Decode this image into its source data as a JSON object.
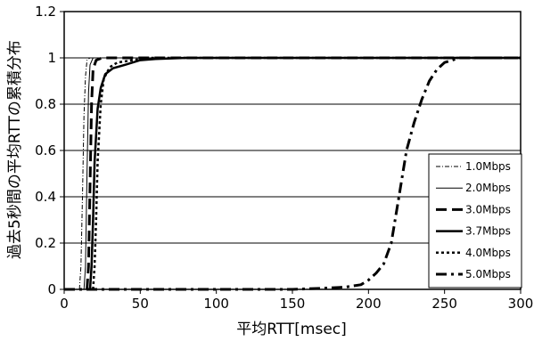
{
  "chart_data": {
    "type": "line",
    "title": "",
    "xlabel": "平均RTT[msec]",
    "ylabel": "過去5秒間の平均RTTの累積分布",
    "xlim": [
      0,
      300
    ],
    "ylim": [
      0,
      1.2
    ],
    "xticks": [
      "0",
      "50",
      "100",
      "150",
      "200",
      "250",
      "300"
    ],
    "yticks": [
      "0",
      "0.2",
      "0.4",
      "0.6",
      "0.8",
      "1",
      "1.2"
    ],
    "grid": "horizontal",
    "legend_position": "right",
    "series": [
      {
        "name": "1.0Mbps",
        "style": "thin-dash-dot",
        "points": [
          [
            10,
            0
          ],
          [
            11,
            0.1
          ],
          [
            12,
            0.4
          ],
          [
            13,
            0.75
          ],
          [
            14,
            0.92
          ],
          [
            15,
            0.99
          ],
          [
            17,
            1.0
          ],
          [
            300,
            1.0
          ]
        ]
      },
      {
        "name": "2.0Mbps",
        "style": "thin-solid",
        "points": [
          [
            13,
            0
          ],
          [
            14,
            0.1
          ],
          [
            15,
            0.5
          ],
          [
            16,
            0.85
          ],
          [
            17,
            0.97
          ],
          [
            19,
            1.0
          ],
          [
            300,
            1.0
          ]
        ]
      },
      {
        "name": "3.0Mbps",
        "style": "thick-dash",
        "points": [
          [
            15,
            0
          ],
          [
            16,
            0.1
          ],
          [
            17,
            0.45
          ],
          [
            18,
            0.8
          ],
          [
            19,
            0.95
          ],
          [
            21,
            0.99
          ],
          [
            25,
            1.0
          ],
          [
            300,
            1.0
          ]
        ]
      },
      {
        "name": "3.7Mbps",
        "style": "thick-solid",
        "points": [
          [
            17,
            0
          ],
          [
            18,
            0.1
          ],
          [
            19,
            0.3
          ],
          [
            20,
            0.55
          ],
          [
            22,
            0.78
          ],
          [
            24,
            0.87
          ],
          [
            27,
            0.93
          ],
          [
            32,
            0.955
          ],
          [
            40,
            0.97
          ],
          [
            50,
            0.99
          ],
          [
            60,
            0.995
          ],
          [
            80,
            1.0
          ],
          [
            300,
            1.0
          ]
        ]
      },
      {
        "name": "4.0Mbps",
        "style": "dotted",
        "points": [
          [
            19,
            0
          ],
          [
            20,
            0.1
          ],
          [
            21,
            0.3
          ],
          [
            22,
            0.55
          ],
          [
            24,
            0.8
          ],
          [
            26,
            0.91
          ],
          [
            30,
            0.96
          ],
          [
            35,
            0.98
          ],
          [
            45,
            0.99
          ],
          [
            55,
            1.0
          ],
          [
            300,
            1.0
          ]
        ]
      },
      {
        "name": "5.0Mbps",
        "style": "thick-dash-dot",
        "points": [
          [
            0,
            0
          ],
          [
            150,
            0
          ],
          [
            170,
            0.005
          ],
          [
            185,
            0.01
          ],
          [
            195,
            0.02
          ],
          [
            200,
            0.04
          ],
          [
            205,
            0.07
          ],
          [
            210,
            0.11
          ],
          [
            215,
            0.2
          ],
          [
            220,
            0.4
          ],
          [
            225,
            0.6
          ],
          [
            230,
            0.72
          ],
          [
            235,
            0.82
          ],
          [
            240,
            0.9
          ],
          [
            245,
            0.95
          ],
          [
            250,
            0.98
          ],
          [
            255,
            0.99
          ],
          [
            260,
            1.0
          ],
          [
            300,
            1.0
          ]
        ]
      }
    ]
  }
}
